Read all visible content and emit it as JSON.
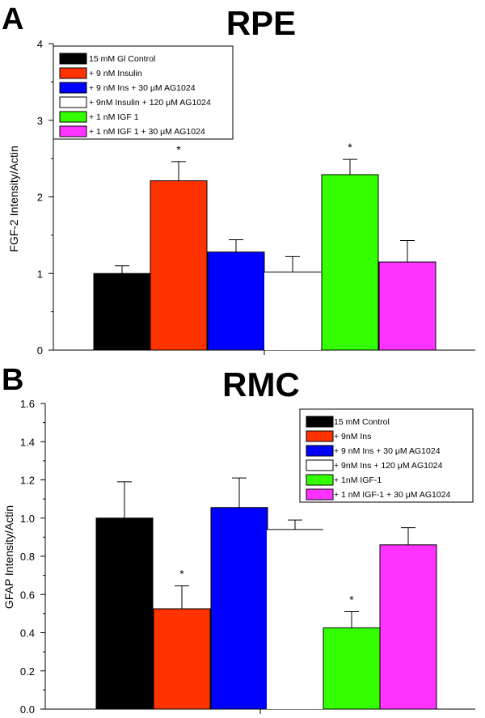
{
  "chart_data": [
    {
      "type": "bar",
      "panel": "A",
      "title": "RPE",
      "ylabel": "FGF-2 Intensity/Actin",
      "xlabel": "",
      "ylim": [
        0,
        4
      ],
      "yticks": [
        "0",
        "1",
        "2",
        "3",
        "4"
      ],
      "legend_position": "top-left",
      "series": [
        {
          "name": "15 mM Gl Control",
          "value": 1.0,
          "error": 0.1,
          "color": "#000000",
          "significant": false
        },
        {
          "name": "+ 9 nM Insulin",
          "value": 2.21,
          "error": 0.25,
          "color": "#ff3300",
          "significant": true
        },
        {
          "name": "+ 9 nM Ins + 30 μM AG1024",
          "value": 1.28,
          "error": 0.16,
          "color": "#0000ff",
          "significant": false
        },
        {
          "name": "+ 9nM Insulin + 120 μM AG1024",
          "value": 1.02,
          "error": 0.2,
          "color": "#ffffff",
          "significant": false
        },
        {
          "name": "+ 1 nM IGF 1",
          "value": 2.29,
          "error": 0.2,
          "color": "#33ff00",
          "significant": true
        },
        {
          "name": "+ 1 nM IGF 1 + 30 μM AG1024",
          "value": 1.15,
          "error": 0.28,
          "color": "#ff33ff",
          "significant": false
        }
      ],
      "annotation": "*"
    },
    {
      "type": "bar",
      "panel": "B",
      "title": "RMC",
      "ylabel": "GFAP Intensity/Actin",
      "xlabel": "",
      "ylim": [
        0,
        1.6
      ],
      "yticks": [
        "0.0",
        "0.2",
        "0.4",
        "0.6",
        "0.8",
        "1.0",
        "1.2",
        "1.4",
        "1.6"
      ],
      "legend_position": "top-right",
      "series": [
        {
          "name": "15 mM Control",
          "value": 1.0,
          "error": 0.19,
          "color": "#000000",
          "significant": false
        },
        {
          "name": "+ 9nM Ins",
          "value": 0.525,
          "error": 0.12,
          "color": "#ff3300",
          "significant": true
        },
        {
          "name": "+ 9 nM Ins + 30 μM AG1024",
          "value": 1.055,
          "error": 0.155,
          "color": "#0000ff",
          "significant": false
        },
        {
          "name": "+ 9nM Ins + 120 μM AG1024",
          "value": 0.94,
          "error": 0.05,
          "color": "#ffffff",
          "significant": false
        },
        {
          "name": "+ 1nM IGF-1",
          "value": 0.425,
          "error": 0.085,
          "color": "#33ff00",
          "significant": true
        },
        {
          "name": "+ 1 nM IGF-1 + 30 μM AG1024",
          "value": 0.86,
          "error": 0.09,
          "color": "#ff33ff",
          "significant": false
        }
      ],
      "annotation": "*"
    }
  ]
}
